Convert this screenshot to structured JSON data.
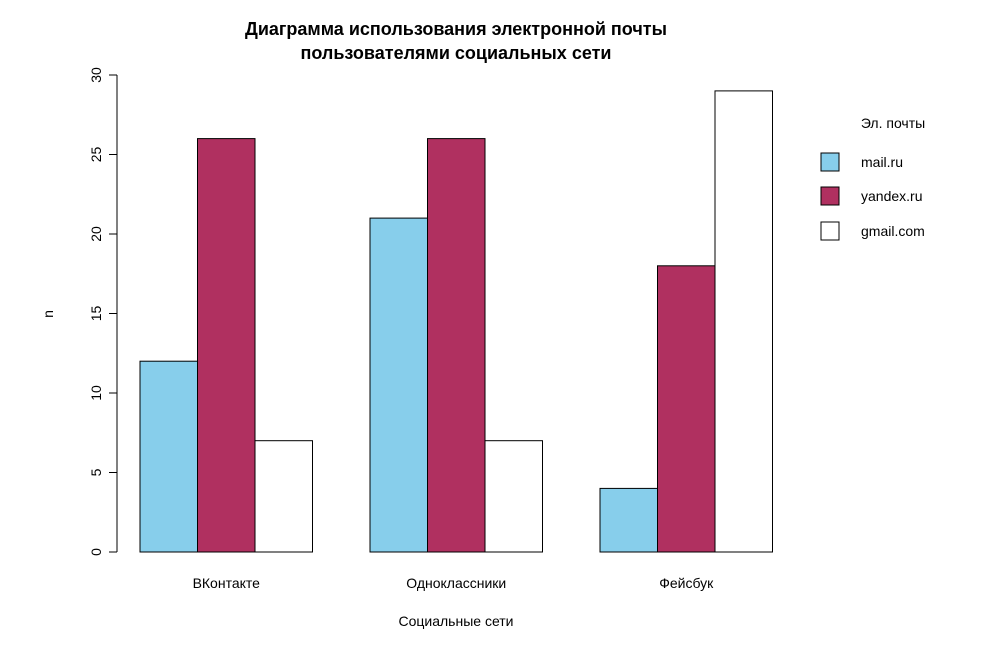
{
  "chart_data": {
    "type": "bar",
    "title": [
      "Диаграмма использования электронной почты",
      "пользователями социальных сети"
    ],
    "xlabel": "Социальные сети",
    "ylabel": "n",
    "categories": [
      "ВКонтакте",
      "Одноклассники",
      "Фейсбук"
    ],
    "ylim": [
      0,
      30
    ],
    "yticks": [
      0,
      5,
      10,
      15,
      20,
      25,
      30
    ],
    "grid": false,
    "legend_title": "Эл. почты",
    "legend_position": "right",
    "series": [
      {
        "name": "mail.ru",
        "color": "#87CEEB",
        "values": [
          12,
          21,
          4
        ]
      },
      {
        "name": "yandex.ru",
        "color": "#B03060",
        "values": [
          26,
          26,
          18
        ]
      },
      {
        "name": "gmail.com",
        "color": "#FFFFFF",
        "values": [
          7,
          7,
          29
        ]
      }
    ]
  }
}
